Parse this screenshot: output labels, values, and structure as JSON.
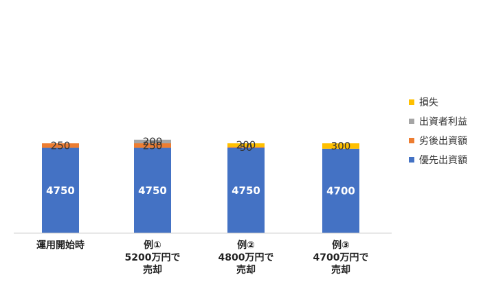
{
  "chart_data": {
    "type": "bar",
    "stacked": true,
    "title": "",
    "xlabel": "",
    "ylabel": "",
    "ylim": [
      0,
      5500
    ],
    "grid": false,
    "legend_position": "right",
    "categories": [
      [
        "運用開始時"
      ],
      [
        "例①",
        "5200万円で",
        "売却"
      ],
      [
        "例②",
        "4800万円で",
        "売却"
      ],
      [
        "例③",
        "4700万円で",
        "売却"
      ]
    ],
    "series": [
      {
        "name": "優先出資額",
        "color": "#4472C4",
        "values": [
          4750,
          4750,
          4750,
          4700
        ]
      },
      {
        "name": "劣後出資額",
        "color": "#ED7D31",
        "values": [
          250,
          250,
          50,
          0
        ]
      },
      {
        "name": "出資者利益",
        "color": "#A5A5A5",
        "values": [
          0,
          200,
          0,
          0
        ]
      },
      {
        "name": "損失",
        "color": "#FFC000",
        "values": [
          0,
          0,
          200,
          300
        ]
      }
    ],
    "legend_order": [
      "損失",
      "出資者利益",
      "劣後出資額",
      "優先出資額"
    ]
  }
}
